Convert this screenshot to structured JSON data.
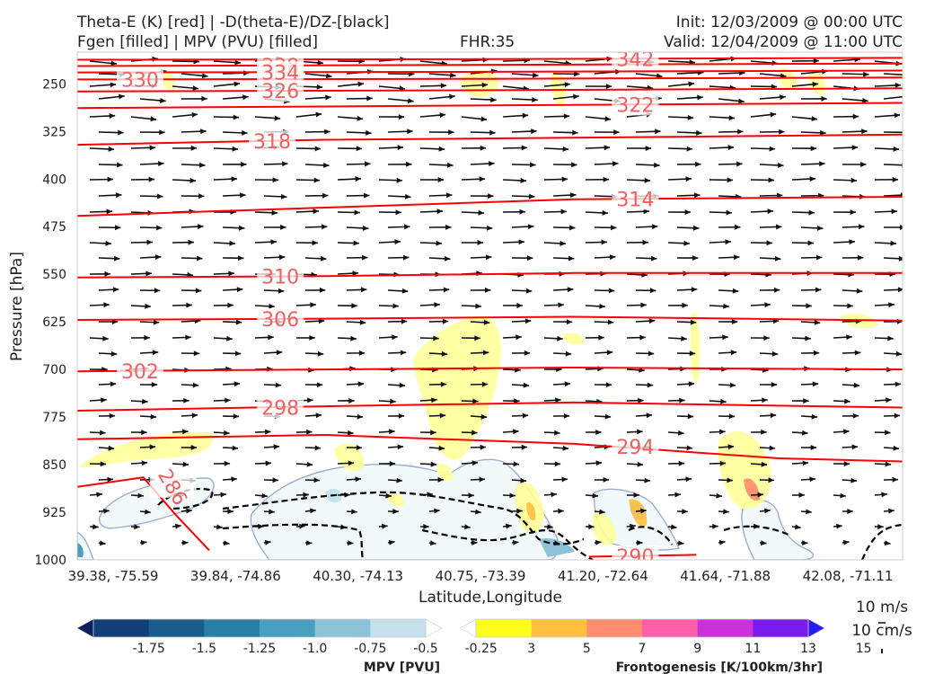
{
  "header": {
    "title_line1": "Theta-E (K) [red] | -D(theta-E)/DZ-[black]",
    "title_line2": "Fgen [filled] | MPV (PVU) [filled]",
    "fhr": "FHR:35",
    "init": "Init: 12/03/2009 @ 00:00 UTC",
    "valid": "Valid: 12/04/2009 @ 11:00 UTC"
  },
  "colors": {
    "theta_e": "#ff0000",
    "theta_e_label": "#f06060",
    "wind": "#111111",
    "mpv_outline": "#9aaed0",
    "mpv_fill": "#f2f9fb",
    "fgen_fill": "#ffff99",
    "dz_contour": "#000000"
  },
  "chart_data": {
    "type": "cross-section",
    "ylabel": "Pressure [hPa]",
    "xlabel": "Latitude,Longitude",
    "y_ticks": [
      250,
      325,
      400,
      475,
      550,
      625,
      700,
      775,
      850,
      925,
      1000
    ],
    "ylim": [
      1000,
      200
    ],
    "x_ticks": [
      "39.38, -75.59",
      "39.84, -74.86",
      "40.30, -74.13",
      "40.75, -73.39",
      "41.20, -72.64",
      "41.64, -71.88",
      "42.08, -71.11"
    ],
    "theta_e_contours": [
      {
        "value": 342,
        "label": "342",
        "points": [
          [
            0,
            212
          ],
          [
            0.5,
            211
          ],
          [
            1,
            209
          ]
        ]
      },
      {
        "value": 338,
        "label": "338",
        "points": [
          [
            0,
            222
          ],
          [
            0.5,
            220
          ],
          [
            1,
            218
          ]
        ]
      },
      {
        "value": 334,
        "label": "334",
        "points": [
          [
            0,
            232
          ],
          [
            0.5,
            231
          ],
          [
            1,
            229
          ]
        ]
      },
      {
        "value": 330,
        "label": "330",
        "points": [
          [
            0,
            243
          ],
          [
            0.5,
            242
          ],
          [
            1,
            240
          ]
        ]
      },
      {
        "value": 326,
        "label": "326",
        "points": [
          [
            0,
            262
          ],
          [
            0.5,
            260
          ],
          [
            1,
            257
          ]
        ]
      },
      {
        "value": 322,
        "label": "322",
        "points": [
          [
            0,
            288
          ],
          [
            0.5,
            284
          ],
          [
            1,
            280
          ]
        ]
      },
      {
        "value": 318,
        "label": "318",
        "points": [
          [
            0,
            346
          ],
          [
            0.3,
            338
          ],
          [
            0.6,
            335
          ],
          [
            1,
            330
          ]
        ]
      },
      {
        "value": 314,
        "label": "314",
        "points": [
          [
            0,
            458
          ],
          [
            0.3,
            445
          ],
          [
            0.6,
            432
          ],
          [
            1,
            428
          ]
        ]
      },
      {
        "value": 310,
        "label": "310",
        "points": [
          [
            0,
            555
          ],
          [
            0.3,
            553
          ],
          [
            0.6,
            548
          ],
          [
            1,
            548
          ]
        ]
      },
      {
        "value": 306,
        "label": "306",
        "points": [
          [
            0,
            622
          ],
          [
            0.3,
            620
          ],
          [
            0.6,
            617
          ],
          [
            1,
            623
          ]
        ]
      },
      {
        "value": 302,
        "label": "302",
        "points": [
          [
            0,
            703
          ],
          [
            0.3,
            700
          ],
          [
            0.6,
            697
          ],
          [
            1,
            700
          ]
        ]
      },
      {
        "value": 298,
        "label": "298",
        "points": [
          [
            0,
            765
          ],
          [
            0.3,
            758
          ],
          [
            0.6,
            752
          ],
          [
            1,
            760
          ]
        ]
      },
      {
        "value": 294,
        "label": "294",
        "points": [
          [
            0,
            810
          ],
          [
            0.3,
            803
          ],
          [
            0.6,
            817
          ],
          [
            0.85,
            840
          ],
          [
            1,
            845
          ]
        ]
      },
      {
        "value": 290,
        "label": "290",
        "points": [
          [
            0.62,
            995
          ],
          [
            0.75,
            992
          ]
        ]
      },
      {
        "value": 286,
        "label": "286",
        "points": [
          [
            0,
            885
          ],
          [
            0.08,
            870
          ],
          [
            0.12,
            930
          ],
          [
            0.16,
            985
          ]
        ]
      }
    ],
    "colorbars": [
      {
        "name": "MPV [PVU]",
        "tick_labels": [
          "-1.75",
          "-1.5",
          "-1.25",
          "-1.0",
          "-0.75",
          "-0.5",
          "-0.25"
        ],
        "colors": [
          "#0d1d5c",
          "#123f7a",
          "#1a5c8c",
          "#2a7fa6",
          "#4a9ec0",
          "#8cc3d8",
          "#c5e2ec",
          "#ffffff"
        ]
      },
      {
        "name": "Frontogenesis [K/100km/3hr]",
        "tick_labels": [
          "3",
          "5",
          "7",
          "9",
          "11",
          "13",
          "15"
        ],
        "colors": [
          "#ffffff",
          "#ffff1a",
          "#ffc040",
          "#ff8c6e",
          "#ff5fa8",
          "#c832d8",
          "#7a1cf0",
          "#2a1af5"
        ]
      }
    ],
    "wind_legend": {
      "horizontal": "10 m/s",
      "vertical": "10 cm/s"
    }
  }
}
